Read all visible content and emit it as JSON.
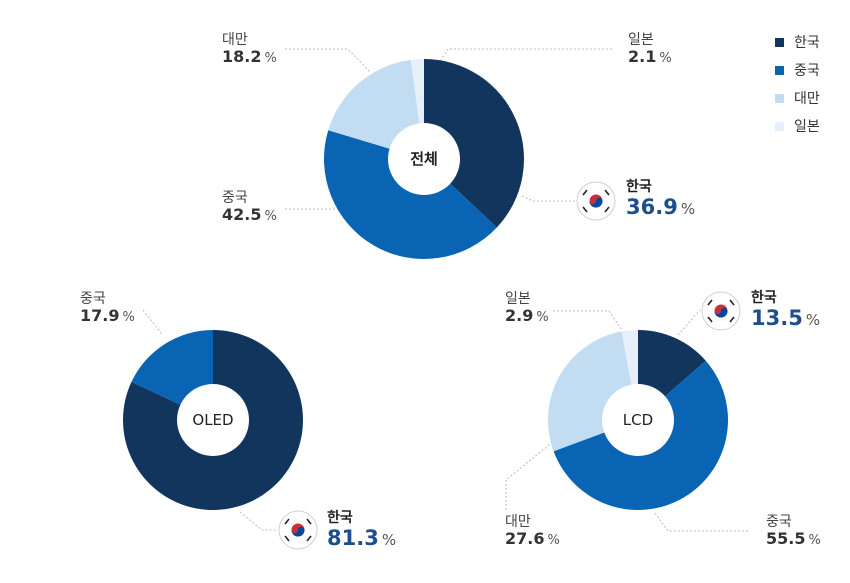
{
  "colors": {
    "한국": "#12355e",
    "중국": "#0a64b4",
    "대만": "#c2dcf2",
    "일본": "#e6f0fa"
  },
  "legend": [
    "한국",
    "중국",
    "대만",
    "일본"
  ],
  "chart_data": [
    {
      "type": "pie",
      "center_label": "전체",
      "slices": [
        {
          "name": "한국",
          "value": 36.9
        },
        {
          "name": "중국",
          "value": 42.5
        },
        {
          "name": "대만",
          "value": 18.2
        },
        {
          "name": "일본",
          "value": 2.1
        }
      ]
    },
    {
      "type": "pie",
      "center_label": "OLED",
      "slices": [
        {
          "name": "한국",
          "value": 81.3
        },
        {
          "name": "중국",
          "value": 17.9
        }
      ]
    },
    {
      "type": "pie",
      "center_label": "LCD",
      "slices": [
        {
          "name": "한국",
          "value": 13.5
        },
        {
          "name": "중국",
          "value": 55.5
        },
        {
          "name": "대만",
          "value": 27.6
        },
        {
          "name": "일본",
          "value": 2.9
        }
      ]
    }
  ],
  "labels": {
    "total_korea": {
      "name": "한국",
      "value": "36.9",
      "unit": "%"
    },
    "total_china": {
      "name": "중국",
      "value": "42.5",
      "unit": "%"
    },
    "total_taiwan": {
      "name": "대만",
      "value": "18.2",
      "unit": "%"
    },
    "total_japan": {
      "name": "일본",
      "value": "2.1",
      "unit": "%"
    },
    "oled_korea": {
      "name": "한국",
      "value": "81.3",
      "unit": "%"
    },
    "oled_china": {
      "name": "중국",
      "value": "17.9",
      "unit": "%"
    },
    "lcd_korea": {
      "name": "한국",
      "value": "13.5",
      "unit": "%"
    },
    "lcd_china": {
      "name": "중국",
      "value": "55.5",
      "unit": "%"
    },
    "lcd_taiwan": {
      "name": "대만",
      "value": "27.6",
      "unit": "%"
    },
    "lcd_japan": {
      "name": "일본",
      "value": "2.9",
      "unit": "%"
    }
  }
}
